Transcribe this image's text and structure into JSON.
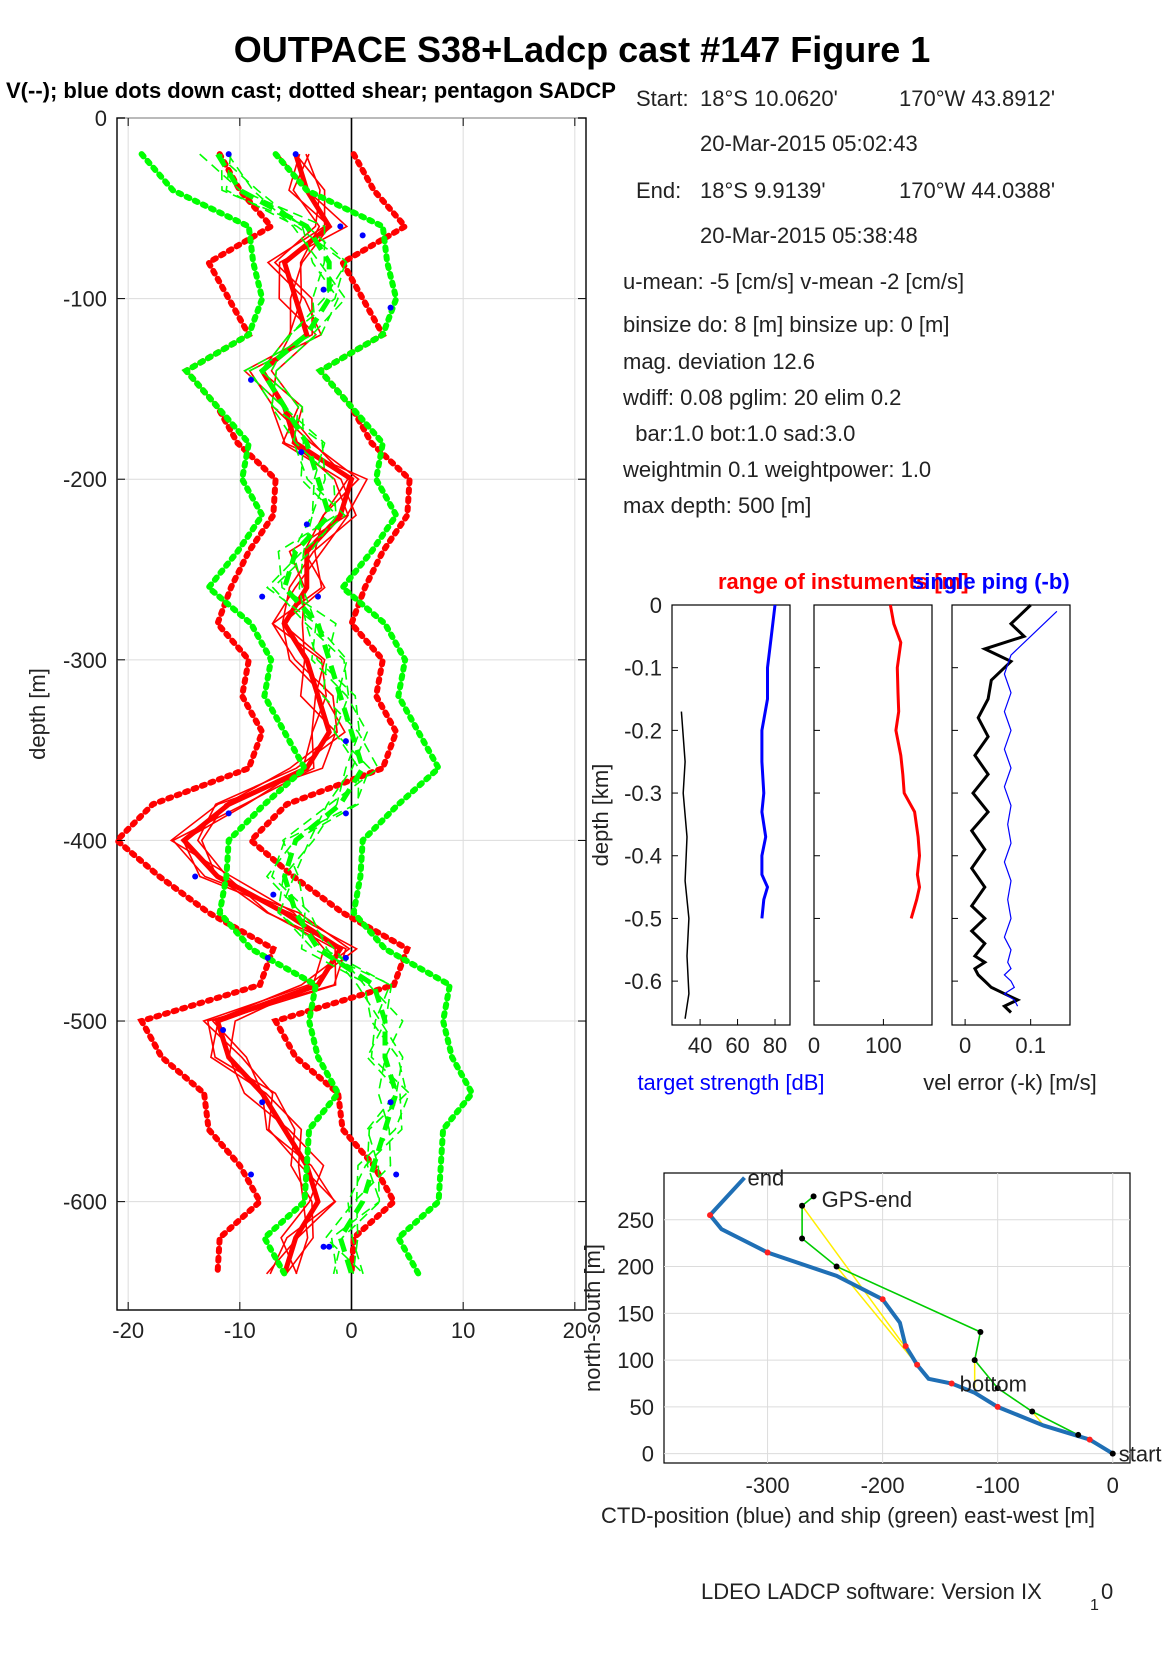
{
  "figure": {
    "title": "OUTPACE S38+Ladcp cast #147  Figure 1",
    "footer": "LDEO LADCP software: Version IX",
    "footer_sub": "1",
    "footer_tail": "0"
  },
  "info": {
    "start_label": "Start:",
    "start_lat": "18°S 10.0620'",
    "start_lon": "170°W 43.8912'",
    "start_time": "20-Mar-2015 05:02:43",
    "end_label": "End:",
    "end_lat": "18°S  9.9139'",
    "end_lon": "170°W 44.0388'",
    "end_time": "20-Mar-2015 05:38:48",
    "means": "u-mean:  -5 [cm/s]    v-mean  -2 [cm/s]",
    "binsize": "binsize do: 8 [m]  binsize up:  0 [m]",
    "magdev": "mag. deviation 12.6",
    "wdiff": "wdiff: 0.08  pglim: 20  elim 0.2",
    "bar": "  bar:1.0 bot:1.0 sad:3.0",
    "weight": "weightmin 0.1  weightpower: 1.0",
    "maxdepth": "max depth: 500 [m]"
  },
  "chart_data": [
    {
      "type": "line",
      "id": "profile",
      "title": "V(--); blue dots down cast; dotted shear; pentagon SADCP",
      "ylabel": "depth [m]",
      "xlim": [
        -21,
        21
      ],
      "ylim": [
        -660,
        0
      ],
      "xticks": [
        "-20",
        "-10",
        "0",
        "10",
        "20"
      ],
      "yticks": [
        "0",
        "-100",
        "-200",
        "-300",
        "-400",
        "-500",
        "-600"
      ],
      "grid": true,
      "depth": [
        -20,
        -40,
        -60,
        -80,
        -100,
        -120,
        -140,
        -160,
        -180,
        -200,
        -220,
        -240,
        -260,
        -280,
        -300,
        -320,
        -340,
        -360,
        -380,
        -400,
        -420,
        -440,
        -460,
        -480,
        -500,
        -520,
        -540,
        -560,
        -580,
        -600,
        -620,
        -640
      ],
      "series": [
        {
          "name": "U",
          "color": "#ff0000",
          "values": [
            -5,
            -4,
            -2,
            -6,
            -5,
            -4,
            -8,
            -6,
            -5,
            0,
            -1,
            -4,
            -4,
            -6,
            -4,
            -3,
            -2,
            -4,
            -11,
            -15,
            -12,
            -6,
            -1,
            -3,
            -12,
            -11,
            -8,
            -6,
            -4,
            -3,
            -5,
            -6
          ]
        },
        {
          "name": "V",
          "color": "#00ff00",
          "values": [
            -12,
            -10,
            -4,
            -2,
            -2,
            -4,
            -8,
            -6,
            -4,
            -3,
            -2,
            -5,
            -6,
            -3,
            -2,
            -1,
            0,
            1,
            -1,
            -5,
            -6,
            -5,
            -3,
            2,
            3,
            3,
            4,
            3,
            2,
            1,
            -1,
            0
          ]
        }
      ],
      "sadcp_dots": [
        [
          -11,
          -20
        ],
        [
          -5,
          -20
        ],
        [
          -1,
          -60
        ],
        [
          1,
          -65
        ],
        [
          -2.5,
          -95
        ],
        [
          3.5,
          -105
        ],
        [
          -9,
          -145
        ],
        [
          -4.5,
          -185
        ],
        [
          -4,
          -225
        ],
        [
          -8,
          -265
        ],
        [
          -3,
          -265
        ],
        [
          -0.5,
          -345
        ],
        [
          -11,
          -385
        ],
        [
          -0.5,
          -385
        ],
        [
          -14,
          -420
        ],
        [
          -7,
          -430
        ],
        [
          -7.5,
          -465
        ],
        [
          -0.5,
          -465
        ],
        [
          -11.5,
          -505
        ],
        [
          -8,
          -545
        ],
        [
          3.5,
          -545
        ],
        [
          -9,
          -585
        ],
        [
          4,
          -585
        ],
        [
          -2.5,
          -625
        ],
        [
          -2,
          -625
        ]
      ]
    },
    {
      "type": "line",
      "id": "target-strength",
      "xlabel": "target strength [dB]",
      "ylabel": "depth [km]",
      "title": "range of instuments [m]",
      "xticks": [
        "40",
        "60",
        "80"
      ],
      "yticks": [
        "0",
        "-0.1",
        "-0.2",
        "-0.3",
        "-0.4",
        "-0.5",
        "-0.6"
      ],
      "xlim": [
        25,
        88
      ],
      "ylim": [
        -0.67,
        0
      ],
      "series": [
        {
          "name": "target",
          "color": "#0000ff",
          "x": [
            80,
            78,
            76,
            76,
            73,
            73,
            74,
            73,
            75,
            73,
            73,
            76,
            74,
            73
          ],
          "y": [
            0,
            -0.05,
            -0.1,
            -0.15,
            -0.2,
            -0.25,
            -0.3,
            -0.33,
            -0.37,
            -0.4,
            -0.43,
            -0.45,
            -0.47,
            -0.5
          ]
        },
        {
          "name": "range",
          "color": "#000000",
          "x": [
            30,
            32,
            31,
            33,
            32,
            34,
            33,
            34,
            32
          ],
          "y": [
            -0.17,
            -0.25,
            -0.3,
            -0.37,
            -0.44,
            -0.5,
            -0.56,
            -0.62,
            -0.66
          ]
        }
      ]
    },
    {
      "type": "line",
      "id": "range-panel",
      "xticks": [
        "0",
        "100"
      ],
      "xlim": [
        0,
        170
      ],
      "ylim": [
        -0.67,
        0
      ],
      "series": [
        {
          "name": "range",
          "color": "#ff0000",
          "x": [
            110,
            115,
            125,
            120,
            121,
            122,
            118,
            125,
            128,
            130,
            145,
            150,
            152,
            149,
            152,
            148,
            140
          ],
          "y": [
            0,
            -0.03,
            -0.06,
            -0.1,
            -0.14,
            -0.17,
            -0.2,
            -0.24,
            -0.27,
            -0.3,
            -0.33,
            -0.37,
            -0.4,
            -0.43,
            -0.45,
            -0.47,
            -0.5
          ]
        }
      ]
    },
    {
      "type": "line",
      "id": "vel-error",
      "title": "single ping (-b)",
      "xlabel": "vel error (-k) [m/s]",
      "xticks": [
        "0",
        "0.1"
      ],
      "xlim": [
        -0.02,
        0.16
      ],
      "ylim": [
        -0.67,
        0
      ],
      "series": [
        {
          "name": "error",
          "color": "#000000",
          "x": [
            0.1,
            0.07,
            0.09,
            0.03,
            0.07,
            0.04,
            0.035,
            0.02,
            0.035,
            0.015,
            0.035,
            0.012,
            0.035,
            0.01,
            0.03,
            0.01,
            0.03,
            0.01,
            0.03,
            0.01,
            0.03,
            0.015,
            0.03,
            0.015,
            0.02,
            0.03,
            0.04,
            0.06,
            0.08,
            0.06,
            0.07
          ],
          "y": [
            0,
            -0.03,
            -0.05,
            -0.07,
            -0.09,
            -0.12,
            -0.15,
            -0.18,
            -0.21,
            -0.24,
            -0.27,
            -0.3,
            -0.33,
            -0.36,
            -0.39,
            -0.42,
            -0.45,
            -0.48,
            -0.5,
            -0.52,
            -0.54,
            -0.56,
            -0.57,
            -0.58,
            -0.59,
            -0.6,
            -0.61,
            -0.62,
            -0.63,
            -0.64,
            -0.65
          ]
        },
        {
          "name": "single-ping",
          "color": "#0000ff",
          "x": [
            0.14,
            0.1,
            0.07,
            0.06,
            0.07,
            0.06,
            0.07,
            0.06,
            0.07,
            0.06,
            0.07,
            0.065,
            0.07,
            0.06,
            0.07,
            0.065,
            0.07,
            0.06,
            0.07,
            0.065,
            0.07,
            0.06,
            0.07,
            0.075,
            0.06,
            0.075,
            0.08
          ],
          "y": [
            -0.01,
            -0.05,
            -0.08,
            -0.11,
            -0.14,
            -0.17,
            -0.2,
            -0.23,
            -0.26,
            -0.29,
            -0.32,
            -0.35,
            -0.38,
            -0.41,
            -0.44,
            -0.47,
            -0.5,
            -0.53,
            -0.55,
            -0.57,
            -0.58,
            -0.59,
            -0.6,
            -0.61,
            -0.62,
            -0.63,
            -0.64
          ]
        }
      ]
    },
    {
      "type": "line",
      "id": "positions",
      "xlabel": "CTD-position (blue) and ship (green) east-west [m]",
      "ylabel": "north-south [m]",
      "xlim": [
        -390,
        15
      ],
      "ylim": [
        -10,
        300
      ],
      "xticks": [
        "-300",
        "-200",
        "-100",
        "0"
      ],
      "yticks": [
        "0",
        "50",
        "100",
        "150",
        "200",
        "250"
      ],
      "labels": {
        "end": "end",
        "gps_end": "GPS-end",
        "bottom": "bottom",
        "start": "start"
      },
      "series": [
        {
          "name": "CTD",
          "color": "#1f6fb5",
          "x": [
            0,
            -20,
            -60,
            -100,
            -120,
            -140,
            -160,
            -170,
            -175,
            -180,
            -185,
            -200,
            -240,
            -300,
            -340,
            -350,
            -320
          ],
          "y": [
            0,
            15,
            30,
            50,
            65,
            75,
            80,
            95,
            105,
            115,
            140,
            165,
            190,
            215,
            240,
            255,
            295
          ]
        },
        {
          "name": "ship",
          "color": "#00cc00",
          "x": [
            0,
            -30,
            -70,
            -100,
            -120,
            -115,
            -240,
            -270,
            -270,
            -260
          ],
          "y": [
            0,
            20,
            45,
            70,
            100,
            130,
            200,
            230,
            265,
            275
          ]
        }
      ]
    }
  ]
}
